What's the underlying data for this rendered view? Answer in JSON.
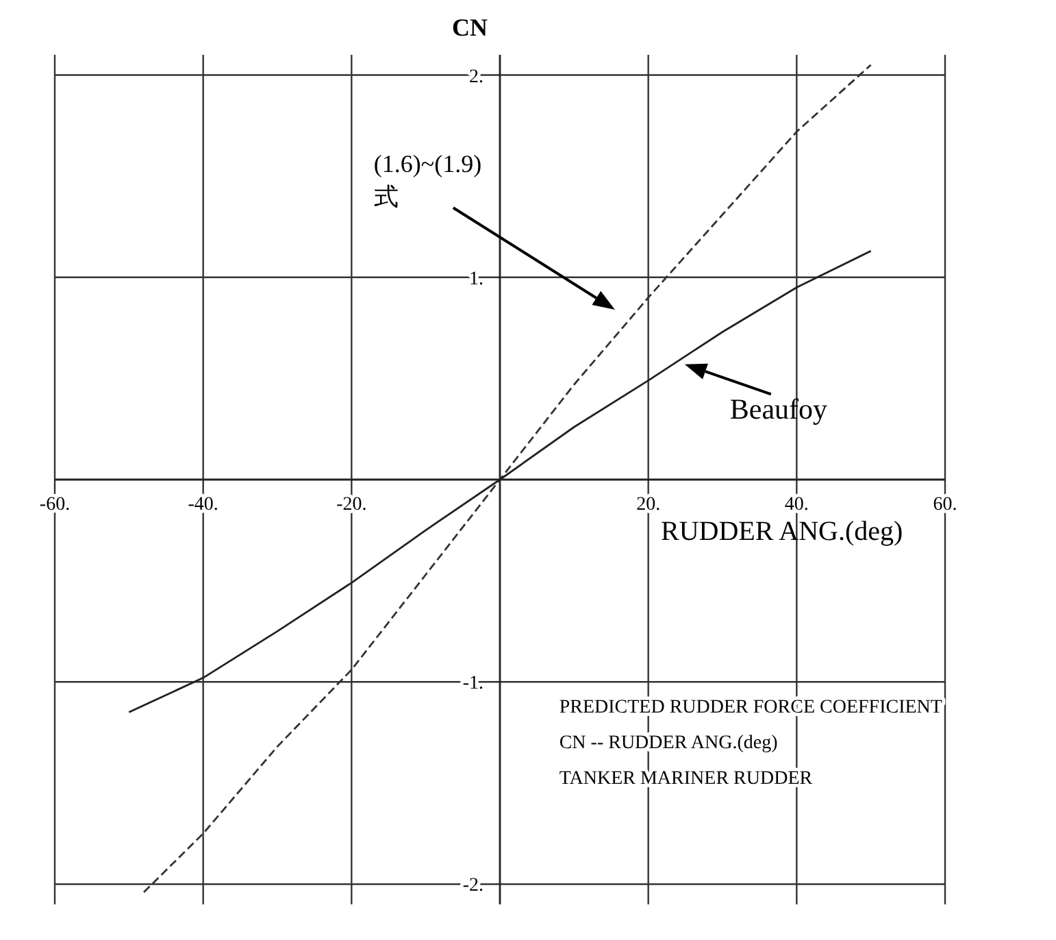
{
  "chart_data": {
    "type": "line",
    "xlabel": "RUDDER ANG.(deg)",
    "ylabel": "CN",
    "x": [
      -48,
      -40,
      -30,
      -20,
      -10,
      0,
      10,
      20,
      30,
      40,
      50
    ],
    "series": [
      {
        "color": "#333333",
        "line_style": "dashed",
        "values": [
          -2.04,
          -1.75,
          -1.32,
          -0.94,
          -0.47,
          0,
          0.47,
          0.9,
          1.31,
          1.72,
          2.05
        ]
      },
      {
        "x": [
          -50,
          -40,
          -30,
          -20,
          -10,
          0,
          10,
          20,
          30,
          40,
          50
        ],
        "color": "#222222",
        "line_style": "solid",
        "values": [
          -1.15,
          -0.98,
          -0.75,
          -0.51,
          -0.25,
          0,
          0.26,
          0.49,
          0.73,
          0.95,
          1.13
        ]
      }
    ],
    "xlim": [
      -60,
      60
    ],
    "ylim": [
      -2.1,
      2.1
    ],
    "xticks": [
      {
        "value": -60,
        "label": "-60."
      },
      {
        "value": -40,
        "label": "-40."
      },
      {
        "value": -20,
        "label": "-20."
      },
      {
        "value": 20,
        "label": "20."
      },
      {
        "value": 40,
        "label": "40."
      },
      {
        "value": 60,
        "label": "60."
      }
    ],
    "yticks": [
      {
        "value": -2,
        "label": "-2."
      },
      {
        "value": -1,
        "label": "-1."
      },
      {
        "value": 1,
        "label": "1."
      },
      {
        "value": 2,
        "label": "2."
      }
    ],
    "grid": true,
    "annotations": [
      "(1.6)~(1.9)\n式",
      {
        "text": "Beaufoy",
        "x": 24.9,
        "y": 0.57
      },
      "PREDICTED RUDDER FORCE COEFFICIENT",
      "CN      --    RUDDER ANG.(deg)",
      "TANKER MARINER RUDDER"
    ]
  }
}
